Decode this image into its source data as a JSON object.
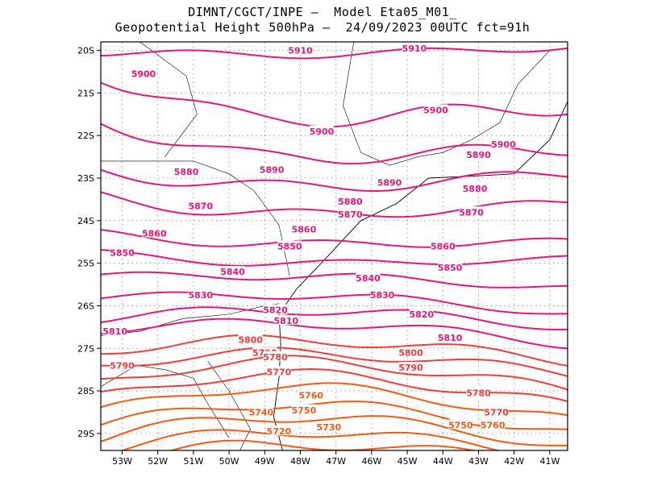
{
  "title": {
    "line1": "DIMNT/CGCT/INPE –  Model Eta05_M01_",
    "line2": "Geopotential Height 500hPa –  24/09/2023 00UTC fct=91h"
  },
  "map": {
    "lon_range": [
      -53.6,
      -40.5
    ],
    "lat_range": [
      -29.4,
      -19.8
    ],
    "lon_ticks": [
      "53W",
      "52W",
      "51W",
      "50W",
      "49W",
      "48W",
      "47W",
      "46W",
      "45W",
      "44W",
      "43W",
      "42W",
      "41W"
    ],
    "lat_ticks": [
      "20S",
      "21S",
      "22S",
      "23S",
      "24S",
      "25S",
      "26S",
      "27S",
      "28S",
      "29S"
    ],
    "grid": "dotted",
    "contour_interval_m": 10
  },
  "contour_labels": [
    {
      "text": "5910",
      "lon": -48.0,
      "lat": -20.0,
      "color": "#e8167a"
    },
    {
      "text": "5910",
      "lon": -44.8,
      "lat": -19.95,
      "color": "#e8167a"
    },
    {
      "text": "5900",
      "lon": -52.4,
      "lat": -20.55,
      "color": "#e8167a"
    },
    {
      "text": "5900",
      "lon": -44.2,
      "lat": -21.4,
      "color": "#e8167a"
    },
    {
      "text": "5900",
      "lon": -47.4,
      "lat": -21.9,
      "color": "#e8167a"
    },
    {
      "text": "5900",
      "lon": -42.3,
      "lat": -22.2,
      "color": "#e8167a"
    },
    {
      "text": "5890",
      "lon": -43.0,
      "lat": -22.45,
      "color": "#e8167a"
    },
    {
      "text": "5890",
      "lon": -48.8,
      "lat": -22.8,
      "color": "#e8167a"
    },
    {
      "text": "5890",
      "lon": -45.5,
      "lat": -23.1,
      "color": "#e8167a"
    },
    {
      "text": "5880",
      "lon": -51.2,
      "lat": -22.85,
      "color": "#e8167a"
    },
    {
      "text": "5880",
      "lon": -46.6,
      "lat": -23.55,
      "color": "#e8167a"
    },
    {
      "text": "5880",
      "lon": -43.1,
      "lat": -23.25,
      "color": "#e8167a"
    },
    {
      "text": "5870",
      "lon": -50.8,
      "lat": -23.65,
      "color": "#e8167a"
    },
    {
      "text": "5870",
      "lon": -46.6,
      "lat": -23.85,
      "color": "#e8167a"
    },
    {
      "text": "5870",
      "lon": -43.2,
      "lat": -23.8,
      "color": "#e8167a"
    },
    {
      "text": "5860",
      "lon": -52.1,
      "lat": -24.3,
      "color": "#e8167a"
    },
    {
      "text": "5860",
      "lon": -47.9,
      "lat": -24.2,
      "color": "#e8167a"
    },
    {
      "text": "5860",
      "lon": -44.0,
      "lat": -24.6,
      "color": "#e8167a"
    },
    {
      "text": "5850",
      "lon": -53.0,
      "lat": -24.75,
      "color": "#e8167a"
    },
    {
      "text": "5850",
      "lon": -48.3,
      "lat": -24.6,
      "color": "#e8167a"
    },
    {
      "text": "5850",
      "lon": -43.8,
      "lat": -25.1,
      "color": "#e8167a"
    },
    {
      "text": "5840",
      "lon": -49.9,
      "lat": -25.2,
      "color": "#e8167a"
    },
    {
      "text": "5840",
      "lon": -46.1,
      "lat": -25.35,
      "color": "#e8167a"
    },
    {
      "text": "5830",
      "lon": -50.8,
      "lat": -25.75,
      "color": "#e8167a"
    },
    {
      "text": "5830",
      "lon": -45.7,
      "lat": -25.75,
      "color": "#e8167a"
    },
    {
      "text": "5820",
      "lon": -48.7,
      "lat": -26.1,
      "color": "#e8167a"
    },
    {
      "text": "5820",
      "lon": -44.6,
      "lat": -26.2,
      "color": "#e8167a"
    },
    {
      "text": "5810",
      "lon": -53.2,
      "lat": -26.6,
      "color": "#e8167a"
    },
    {
      "text": "5810",
      "lon": -48.4,
      "lat": -26.35,
      "color": "#e8167a"
    },
    {
      "text": "5810",
      "lon": -43.8,
      "lat": -26.75,
      "color": "#e8167a"
    },
    {
      "text": "5800",
      "lon": -49.4,
      "lat": -26.8,
      "color": "#f03c3c"
    },
    {
      "text": "5800",
      "lon": -44.9,
      "lat": -27.1,
      "color": "#f03c3c"
    },
    {
      "text": "5790",
      "lon": -53.0,
      "lat": -27.4,
      "color": "#f03c3c"
    },
    {
      "text": "5790",
      "lon": -49.0,
      "lat": -27.1,
      "color": "#f03c3c"
    },
    {
      "text": "5790",
      "lon": -44.9,
      "lat": -27.45,
      "color": "#f03c3c"
    },
    {
      "text": "5780",
      "lon": -48.7,
      "lat": -27.2,
      "color": "#f03c3c"
    },
    {
      "text": "5780",
      "lon": -43.0,
      "lat": -28.05,
      "color": "#f03c3c"
    },
    {
      "text": "5770",
      "lon": -48.6,
      "lat": -27.55,
      "color": "#f03c3c"
    },
    {
      "text": "5770",
      "lon": -42.5,
      "lat": -28.5,
      "color": "#f03c3c"
    },
    {
      "text": "5760",
      "lon": -47.7,
      "lat": -28.1,
      "color": "#f55a14"
    },
    {
      "text": "5760",
      "lon": -42.6,
      "lat": -28.8,
      "color": "#f55a14"
    },
    {
      "text": "5750",
      "lon": -47.9,
      "lat": -28.45,
      "color": "#f55a14"
    },
    {
      "text": "5750",
      "lon": -43.5,
      "lat": -28.8,
      "color": "#f55a14"
    },
    {
      "text": "5740",
      "lon": -49.1,
      "lat": -28.5,
      "color": "#f55a14"
    },
    {
      "text": "5730",
      "lon": -47.2,
      "lat": -28.85,
      "color": "#f55a14"
    },
    {
      "text": "5720",
      "lon": -48.6,
      "lat": -28.95,
      "color": "#f55a14"
    }
  ],
  "colors": {
    "high": "#e8167a",
    "mid": "#f03c3c",
    "low": "#f55a14",
    "coastline": "#000000",
    "grid": "#888888"
  }
}
